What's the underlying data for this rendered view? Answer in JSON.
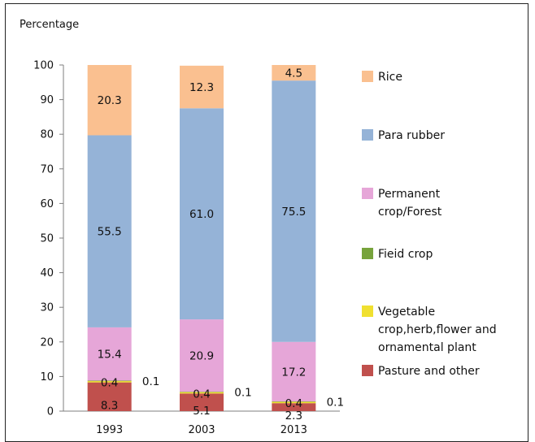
{
  "chart_data": {
    "type": "bar",
    "stacked": true,
    "ylabel": "Percentage",
    "ylim": [
      0,
      100
    ],
    "yticks": [
      0,
      10,
      20,
      30,
      40,
      50,
      60,
      70,
      80,
      90,
      100
    ],
    "categories": [
      "1993",
      "2003",
      "2013"
    ],
    "series": [
      {
        "name": "Pasture and other",
        "color": "#c0504d",
        "values": [
          8.3,
          5.1,
          2.3
        ]
      },
      {
        "name": "Vegetable crop,herb,flower and ornamental plant",
        "legend_lines": [
          "Vegetable",
          "crop,herb,flower and",
          "ornamental plant"
        ],
        "color": "#f0e030",
        "values": [
          0.4,
          0.4,
          0.4
        ]
      },
      {
        "name": "Fieid crop",
        "legend_lines": [
          "Fieid crop"
        ],
        "color": "#77a33c",
        "values": [
          0.1,
          0.1,
          0.1
        ]
      },
      {
        "name": "Permanent crop/Forest",
        "legend_lines": [
          "Permanent",
          "crop/Forest"
        ],
        "color": "#e6a6d8",
        "values": [
          15.4,
          20.9,
          17.2
        ]
      },
      {
        "name": "Para rubber",
        "legend_lines": [
          "Para rubber"
        ],
        "color": "#95b3d7",
        "values": [
          55.5,
          61.0,
          75.5
        ]
      },
      {
        "name": "Rice",
        "legend_lines": [
          "Rice"
        ],
        "color": "#fac090",
        "values": [
          20.3,
          12.3,
          4.5
        ]
      }
    ],
    "data_labels": [
      [
        "8.3",
        "0.4",
        "0.1",
        "15.4",
        "55.5",
        "20.3"
      ],
      [
        "5.1",
        "0.4",
        "0.1",
        "20.9",
        "61.0",
        "12.3"
      ],
      [
        "2.3",
        "0.4",
        "0.1",
        "17.2",
        "75.5",
        "4.5"
      ]
    ],
    "legend_position": "right",
    "grid": false
  }
}
